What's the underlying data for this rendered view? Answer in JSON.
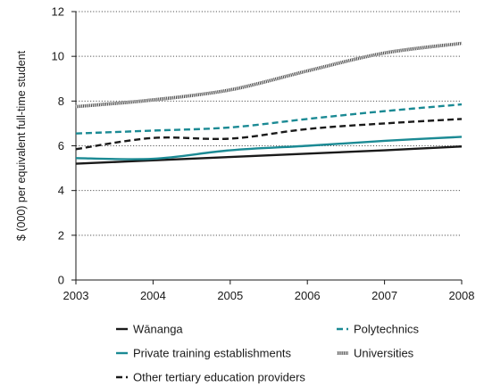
{
  "chart_data": {
    "type": "line",
    "title": "",
    "xlabel": "",
    "ylabel": "$ (000) per equivalent full-time student",
    "x": [
      "2003",
      "2004",
      "2005",
      "2006",
      "2007",
      "2008"
    ],
    "yticks": [
      "0",
      "2",
      "4",
      "6",
      "8",
      "10",
      "12"
    ],
    "ylim": [
      0,
      12
    ],
    "grid": "horizontal dotted",
    "legend_position": "bottom",
    "series": [
      {
        "name": "Wānanga",
        "color": "#1a1a1a",
        "style": "solid",
        "values": [
          5.2,
          5.35,
          5.5,
          5.65,
          5.8,
          5.97
        ]
      },
      {
        "name": "Private training establishments",
        "color": "#1b8a94",
        "style": "solid",
        "values": [
          5.45,
          5.42,
          5.8,
          6.0,
          6.22,
          6.4
        ]
      },
      {
        "name": "Other tertiary education providers",
        "color": "#1a1a1a",
        "style": "dashed",
        "values": [
          5.85,
          6.35,
          6.32,
          6.75,
          7.0,
          7.2
        ]
      },
      {
        "name": "Polytechnics",
        "color": "#1b8a94",
        "style": "dashed",
        "values": [
          6.55,
          6.68,
          6.82,
          7.2,
          7.55,
          7.85
        ]
      },
      {
        "name": "Universities",
        "color": "#444444",
        "style": "hatched",
        "values": [
          7.75,
          8.05,
          8.5,
          9.35,
          10.15,
          10.58
        ]
      }
    ]
  }
}
